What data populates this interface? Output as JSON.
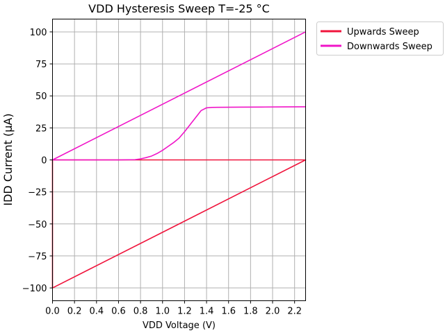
{
  "chart_data": {
    "type": "line",
    "title": "VDD Hysteresis Sweep T=-25 °C",
    "xlabel": "VDD Voltage (V)",
    "ylabel": "IDD Current (µA)",
    "xlim": [
      0,
      2.3
    ],
    "ylim": [
      -110,
      110
    ],
    "xticks": [
      0.0,
      0.2,
      0.4,
      0.6,
      0.8,
      1.0,
      1.2,
      1.4,
      1.6,
      1.8,
      2.0,
      2.2
    ],
    "xtick_labels": [
      "0.0",
      "0.2",
      "0.4",
      "0.6",
      "0.8",
      "1.0",
      "1.2",
      "1.4",
      "1.6",
      "1.8",
      "2.0",
      "2.2"
    ],
    "yticks": [
      -100,
      -75,
      -50,
      -25,
      0,
      25,
      50,
      75,
      100
    ],
    "ytick_labels": [
      "−100",
      "−75",
      "−50",
      "−25",
      "0",
      "25",
      "50",
      "75",
      "100"
    ],
    "grid": true,
    "legend_position": "outside-top-right",
    "series": [
      {
        "name": "Upwards Sweep",
        "color": "#f0143c",
        "x": [
          0.0,
          0.0,
          0.0,
          0.0,
          2.3,
          2.3,
          0.0
        ],
        "y": [
          0.0,
          -100.0,
          -100.0,
          -100.0,
          0.0,
          0.0,
          0.0
        ]
      },
      {
        "name": "Downwards Sweep",
        "color": "#f014c8",
        "x": [
          2.3,
          0.0,
          0.0,
          0.2,
          0.4,
          0.6,
          0.75,
          0.8,
          0.85,
          0.9,
          0.95,
          1.0,
          1.05,
          1.1,
          1.15,
          1.2,
          1.25,
          1.3,
          1.35,
          1.4,
          1.45,
          1.5,
          1.7,
          1.9,
          2.1,
          2.3
        ],
        "y": [
          100.0,
          0.0,
          0.0,
          0.0,
          0.0,
          0.0,
          0.2,
          0.8,
          1.8,
          3.0,
          5.0,
          7.5,
          10.5,
          13.5,
          17.0,
          22.0,
          27.5,
          33.0,
          38.5,
          40.7,
          41.0,
          41.1,
          41.2,
          41.3,
          41.4,
          41.5
        ]
      }
    ]
  }
}
